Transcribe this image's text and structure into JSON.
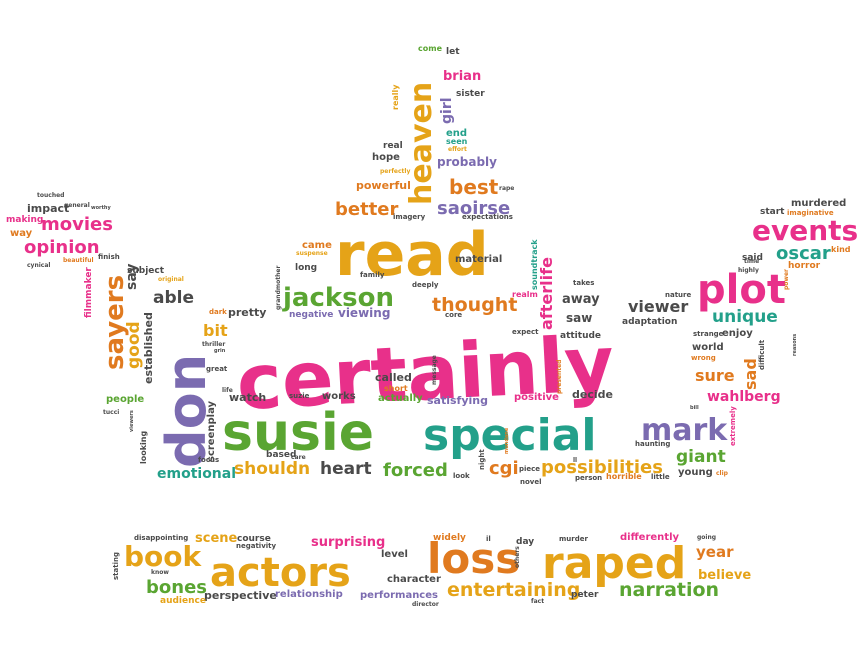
{
  "colors": {
    "pink": "#e8308a",
    "green": "#5aa532",
    "orange": "#e07a1f",
    "gold": "#e5a318",
    "teal": "#23a08a",
    "purple": "#7b6bb0",
    "gray": "#4a4a4a",
    "red": "#e23a2c"
  },
  "words": [
    "certainly",
    "don",
    "susie",
    "special",
    "read",
    "heaven",
    "plot",
    "raped",
    "loss",
    "actors",
    "events",
    "jackson",
    "sayers",
    "mark",
    "book",
    "possibilities",
    "narration",
    "entertaining",
    "bones",
    "afterlife",
    "thought",
    "saoirse",
    "best",
    "better",
    "oscar",
    "unique",
    "viewer",
    "wahlberg",
    "sure",
    "sad",
    "giant",
    "cgi",
    "forced",
    "heart",
    "shouldn",
    "emotional",
    "screenplay",
    "able",
    "good",
    "bit",
    "pretty",
    "movies",
    "opinion",
    "impact",
    "making",
    "way",
    "filmmaker",
    "established",
    "people",
    "say",
    "brian",
    "girl",
    "sister",
    "come",
    "let",
    "really",
    "real",
    "hope",
    "powerful",
    "probably",
    "end",
    "seen",
    "imagery",
    "expectations",
    "soundtrack",
    "viewing",
    "negative",
    "realm",
    "saw",
    "away",
    "adaptation",
    "attitude",
    "positive",
    "decide",
    "satisfying",
    "actually",
    "called",
    "watch",
    "works",
    "based",
    "looking",
    "focus",
    "material",
    "long",
    "came",
    "murdered",
    "start",
    "said",
    "horror",
    "world",
    "enjoy",
    "strange",
    "scene",
    "surprising",
    "course",
    "perspective",
    "relationship",
    "performances",
    "character",
    "level",
    "year",
    "believe",
    "differently",
    "murder",
    "day",
    "widely",
    "peter",
    "audience",
    "stating",
    "disappointing",
    "negativity",
    "young",
    "horrible",
    "little",
    "person",
    "novel",
    "piece",
    "look",
    "night",
    "haunting",
    "extremely",
    "difficult",
    "kind",
    "time",
    "highly",
    "imaginative",
    "nature",
    "takes",
    "deeply",
    "family",
    "subject",
    "original",
    "dark",
    "thriller",
    "great",
    "life",
    "tucci",
    "finish",
    "beautiful",
    "cynical",
    "touched",
    "general",
    "worthy",
    "rape",
    "effort",
    "perfectly",
    "grandmother",
    "core",
    "expect",
    "presented",
    "message",
    "short",
    "suzie",
    "care",
    "know",
    "fact",
    "going",
    "director",
    "others",
    "il",
    "ll",
    "bill",
    "clip",
    "wrong",
    "mundane",
    "grin",
    "reasons",
    "power",
    "suspense",
    "viewers"
  ]
}
